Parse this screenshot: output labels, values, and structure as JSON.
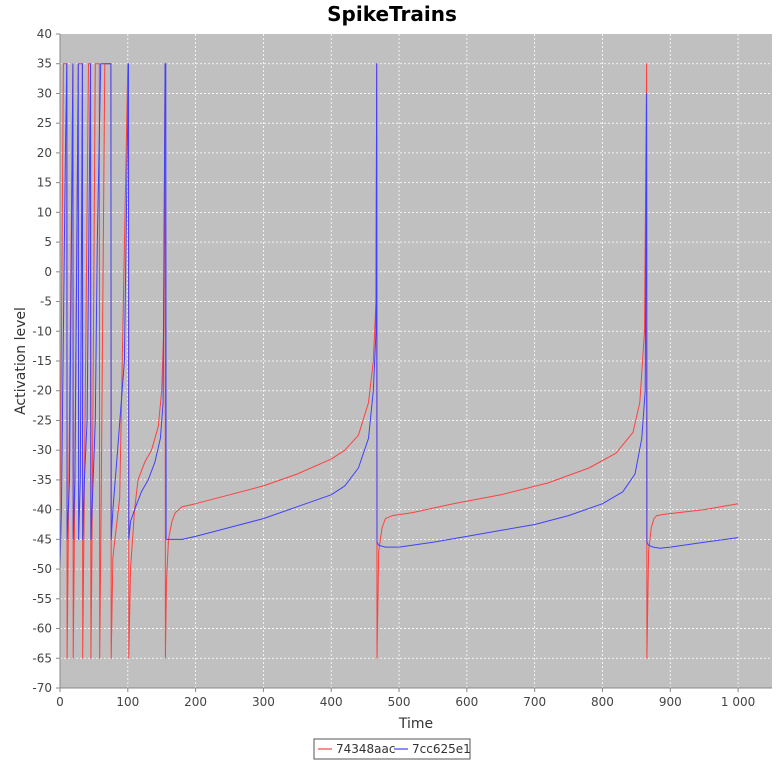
{
  "chart_data": {
    "type": "line",
    "title": "SpikeTrains",
    "xlabel": "Time",
    "ylabel": "Activation level",
    "xlim": [
      0,
      1050
    ],
    "ylim": [
      -70,
      40
    ],
    "xticks": [
      0,
      100,
      200,
      300,
      400,
      500,
      600,
      700,
      800,
      900,
      1000
    ],
    "xtick_labels": [
      "0",
      "100",
      "200",
      "300",
      "400",
      "500",
      "600",
      "700",
      "800",
      "900",
      "1 000"
    ],
    "yticks": [
      40,
      35,
      30,
      25,
      20,
      15,
      10,
      5,
      0,
      -5,
      -10,
      -15,
      -20,
      -25,
      -30,
      -35,
      -40,
      -45,
      -50,
      -55,
      -60,
      -65,
      -70
    ],
    "grid": true,
    "legend_position": "bottom",
    "background_color": "#c0c0c0",
    "series": [
      {
        "name": "74348aac",
        "color": "#ff4040",
        "x": [
          0,
          5,
          10,
          10.5,
          12,
          19,
          19.5,
          21,
          27,
          33,
          33.5,
          35,
          42,
          45,
          45.5,
          47,
          52,
          58,
          58.5,
          60,
          66,
          74,
          75,
          75.5,
          78,
          88,
          100,
          101,
          101.5,
          104,
          110,
          115,
          125,
          135,
          145,
          150,
          153,
          155,
          155.5,
          157,
          160,
          165,
          170,
          180,
          200,
          250,
          300,
          350,
          400,
          420,
          440,
          455,
          462,
          466,
          467,
          467.5,
          470,
          475,
          480,
          490,
          520,
          580,
          650,
          720,
          780,
          820,
          845,
          855,
          862,
          865,
          865.5,
          868,
          872,
          876,
          880,
          890,
          950,
          1000
        ],
        "y": [
          -45,
          35,
          35,
          -65,
          -48,
          35,
          -65,
          -48,
          35,
          35,
          -65,
          -48,
          35,
          35,
          -65,
          -48,
          35,
          35,
          -65,
          -48,
          35,
          35,
          35,
          -65,
          -48,
          -38,
          35,
          35,
          -65,
          -50,
          -40,
          -35,
          -32,
          -30,
          -26,
          -20,
          -10,
          35,
          -65,
          -52,
          -45,
          -42,
          -40.5,
          -39.5,
          -39,
          -37.5,
          -36,
          -34,
          -31.5,
          -30,
          -27.5,
          -22,
          -15,
          -5,
          35,
          -65,
          -47,
          -43,
          -41.5,
          -41,
          -40.5,
          -39,
          -37.5,
          -35.5,
          -33,
          -30.5,
          -27,
          -22,
          -10,
          35,
          -65,
          -47,
          -43,
          -41.5,
          -41,
          -40.8,
          -40,
          -39
        ]
      },
      {
        "name": "7cc625e1",
        "color": "#4040ff",
        "x": [
          0,
          2,
          8,
          10,
          10.5,
          14,
          19,
          19.5,
          22,
          27,
          27.5,
          30,
          33,
          33.5,
          36,
          40,
          45,
          45.5,
          48,
          52,
          55,
          60,
          68,
          75,
          75.5,
          78,
          85,
          95,
          101,
          101.5,
          104,
          110,
          120,
          130,
          140,
          148,
          152,
          155,
          156,
          156.5,
          160,
          170,
          180,
          200,
          250,
          300,
          350,
          400,
          420,
          440,
          455,
          462,
          466,
          467,
          467.5,
          470,
          480,
          500,
          550,
          600,
          650,
          700,
          750,
          800,
          830,
          848,
          858,
          863,
          865,
          865.5,
          868,
          875,
          885,
          900,
          950,
          1000
        ],
        "y": [
          -50,
          -40,
          20,
          35,
          -45,
          -35,
          35,
          -45,
          -35,
          35,
          -45,
          -35,
          35,
          -45,
          -35,
          -25,
          35,
          -45,
          -38,
          -25,
          5,
          35,
          35,
          35,
          -45,
          -40,
          -30,
          -15,
          35,
          -45,
          -42,
          -40,
          -37,
          -35,
          -32,
          -28,
          -22,
          35,
          35,
          -45,
          -45,
          -45,
          -45,
          -44.5,
          -43,
          -41.5,
          -39.5,
          -37.5,
          -36,
          -33,
          -28,
          -20,
          -10,
          35,
          -45.5,
          -46,
          -46.3,
          -46.3,
          -45.5,
          -44.5,
          -43.5,
          -42.5,
          -41,
          -39,
          -37,
          -34,
          -28,
          -20,
          30,
          -45.5,
          -46,
          -46.3,
          -46.5,
          -46.3,
          -45.5,
          -44.7
        ]
      }
    ]
  }
}
